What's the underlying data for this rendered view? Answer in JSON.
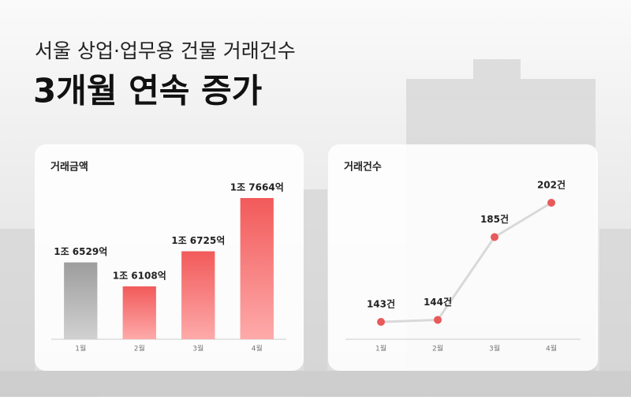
{
  "header": {
    "subtitle": "서울 상업·업무용 건물 거래건수",
    "title": "3개월 연속 증가"
  },
  "chart_data": [
    {
      "type": "bar",
      "title": "거래금액",
      "categories": [
        "1월",
        "2월",
        "3월",
        "4월"
      ],
      "values": [
        16529,
        16108,
        16725,
        17664
      ],
      "value_labels": [
        "1조 6529억",
        "1조 6108억",
        "1조 6725억",
        "1조 7664억"
      ],
      "colors": [
        "#a6a6a6",
        "#f25a5a",
        "#f25a5a",
        "#f25a5a"
      ]
    },
    {
      "type": "line",
      "title": "거래건수",
      "categories": [
        "1월",
        "2월",
        "3월",
        "4월"
      ],
      "values": [
        143,
        144,
        185,
        202
      ],
      "value_labels": [
        "143건",
        "144건",
        "185건",
        "202건"
      ],
      "color": "#e85a5a",
      "line_color": "#d9d9d9"
    }
  ]
}
